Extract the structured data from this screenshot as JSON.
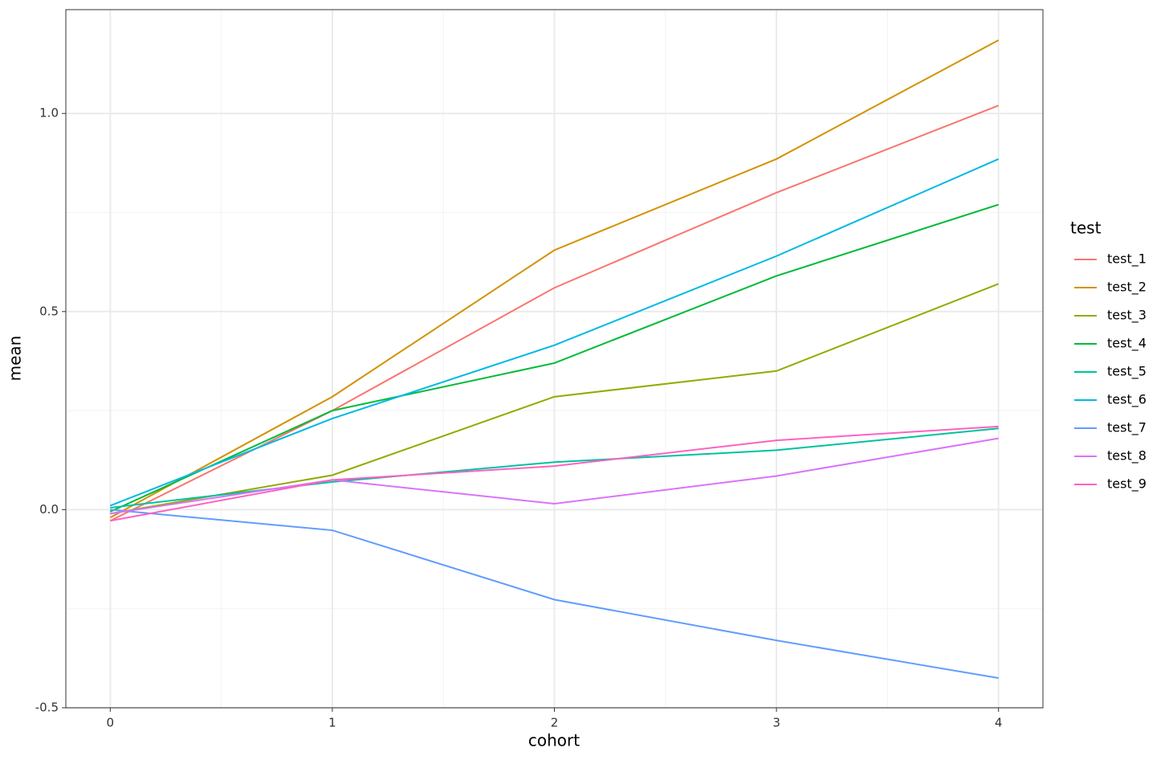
{
  "chart_data": {
    "type": "line",
    "x_label": "cohort",
    "y_label": "mean",
    "legend_title": "test",
    "x": [
      0,
      1,
      2,
      3,
      4
    ],
    "xlim": [
      -0.2,
      4.2
    ],
    "xticks": [
      0,
      1,
      2,
      3,
      4
    ],
    "ylim": [
      -0.5,
      1.262
    ],
    "yticks": [
      {
        "value": -0.5,
        "label": "-0.5"
      },
      {
        "value": 0,
        "label": "0.0"
      },
      {
        "value": 0.5,
        "label": "0.5"
      },
      {
        "value": 1,
        "label": "1.0"
      }
    ],
    "grid": true,
    "minor_grid": true,
    "legend": "right",
    "series": [
      {
        "name": "test_1",
        "color": "#F8766D",
        "values": [
          -0.028,
          0.25,
          0.56,
          0.8,
          1.02
        ]
      },
      {
        "name": "test_2",
        "color": "#D39200",
        "values": [
          -0.02,
          0.285,
          0.655,
          0.885,
          1.185
        ]
      },
      {
        "name": "test_3",
        "color": "#93AA00",
        "values": [
          -0.01,
          0.087,
          0.285,
          0.35,
          0.57
        ]
      },
      {
        "name": "test_4",
        "color": "#00BA38",
        "values": [
          -0.005,
          0.25,
          0.37,
          0.59,
          0.77
        ]
      },
      {
        "name": "test_5",
        "color": "#00C19F",
        "values": [
          0.005,
          0.07,
          0.12,
          0.15,
          0.205
        ]
      },
      {
        "name": "test_6",
        "color": "#00B9E3",
        "values": [
          0.01,
          0.23,
          0.415,
          0.64,
          0.885
        ]
      },
      {
        "name": "test_7",
        "color": "#619CFF",
        "values": [
          0.0,
          -0.052,
          -0.227,
          -0.33,
          -0.425
        ]
      },
      {
        "name": "test_8",
        "color": "#DB72FB",
        "values": [
          -0.01,
          0.075,
          0.015,
          0.085,
          0.18
        ]
      },
      {
        "name": "test_9",
        "color": "#FF61C3",
        "values": [
          -0.028,
          0.075,
          0.11,
          0.175,
          0.21
        ]
      }
    ]
  }
}
